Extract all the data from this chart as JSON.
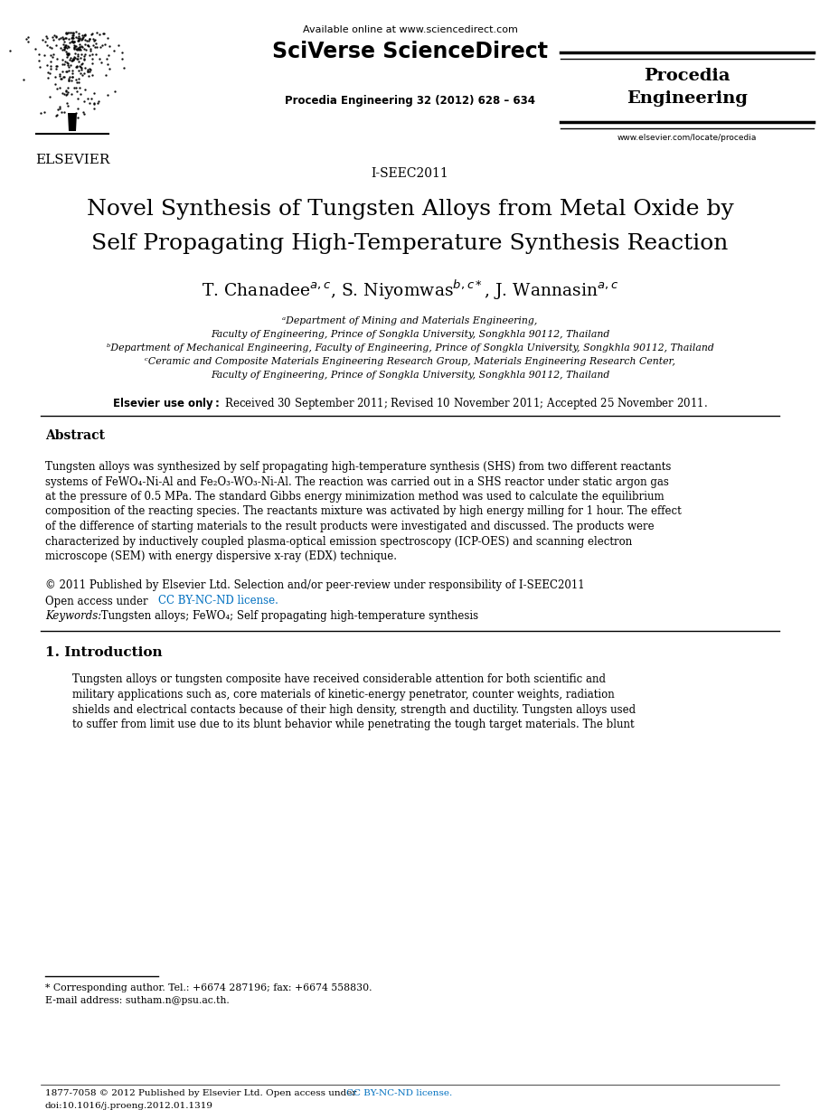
{
  "bg_color": "#ffffff",
  "header_available": "Available online at www.sciencedirect.com",
  "header_sciverse": "SciVerse ScienceDirect",
  "header_journal": "Procedia Engineering 32 (2012) 628 – 634",
  "header_procedia1": "Procedia",
  "header_procedia2": "Engineering",
  "header_website": "www.elsevier.com/locate/procedia",
  "elsevier_label": "ELSEVIER",
  "conference": "I-SEEC2011",
  "title_line1": "Novel Synthesis of Tungsten Alloys from Metal Oxide by",
  "title_line2": "Self Propagating High-Temperature Synthesis Reaction",
  "affil_a1": "ᵃDepartment of Mining and Materials Engineering,",
  "affil_a2": "Faculty of Engineering, Prince of Songkla University, Songkhla 90112, Thailand",
  "affil_b": "ᵇDepartment of Mechanical Engineering, Faculty of Engineering, Prince of Songkla University, Songkhla 90112, Thailand",
  "affil_c1": "ᶜCeramic and Composite Materials Engineering Research Group, Materials Engineering Research Center,",
  "affil_c2": "Faculty of Engineering, Prince of Songkla University, Songkhla 90112, Thailand",
  "dates": "Received 30 September 2011; Revised 10 November 2011; Accepted 25 November 2011.",
  "abstract_title": "Abstract",
  "abstract_text_lines": [
    "Tungsten alloys was synthesized by self propagating high-temperature synthesis (SHS) from two different reactants",
    "systems of FeWO₄-Ni-Al and Fe₂O₃-WO₃-Ni-Al. The reaction was carried out in a SHS reactor under static argon gas",
    "at the pressure of 0.5 MPa. The standard Gibbs energy minimization method was used to calculate the equilibrium",
    "composition of the reacting species. The reactants mixture was activated by high energy milling for 1 hour. The effect",
    "of the difference of starting materials to the result products were investigated and discussed. The products were",
    "characterized by inductively coupled plasma-optical emission spectroscopy (ICP-OES) and scanning electron",
    "microscope (SEM) with energy dispersive x-ray (EDX) technique."
  ],
  "copyright": "© 2011 Published by Elsevier Ltd. Selection and/or peer-review under responsibility of I-SEEC2011",
  "open_access_prefix": "Open access under ",
  "license_text": "CC BY-NC-ND license.",
  "keywords_prefix": "Keywords:",
  "keywords_body": " Tungsten alloys; FeWO₄; Self propagating high-temperature synthesis",
  "section1_title": "1. Introduction",
  "intro_lines": [
    "Tungsten alloys or tungsten composite have received considerable attention for both scientific and",
    "military applications such as, core materials of kinetic-energy penetrator, counter weights, radiation",
    "shields and electrical contacts because of their high density, strength and ductility. Tungsten alloys used",
    "to suffer from limit use due to its blunt behavior while penetrating the tough target materials. The blunt"
  ],
  "footnote1": "* Corresponding author. Tel.: +6674 287196; fax: +6674 558830.",
  "footnote2": "E-mail address: sutham.n@psu.ac.th.",
  "bottom_text": "1877-7058 © 2012 Published by Elsevier Ltd. Open access under ",
  "bottom_license": "CC BY-NC-ND license.",
  "bottom_doi": "doi:10.1016/j.proeng.2012.01.1319",
  "link_color": "#0070C0"
}
